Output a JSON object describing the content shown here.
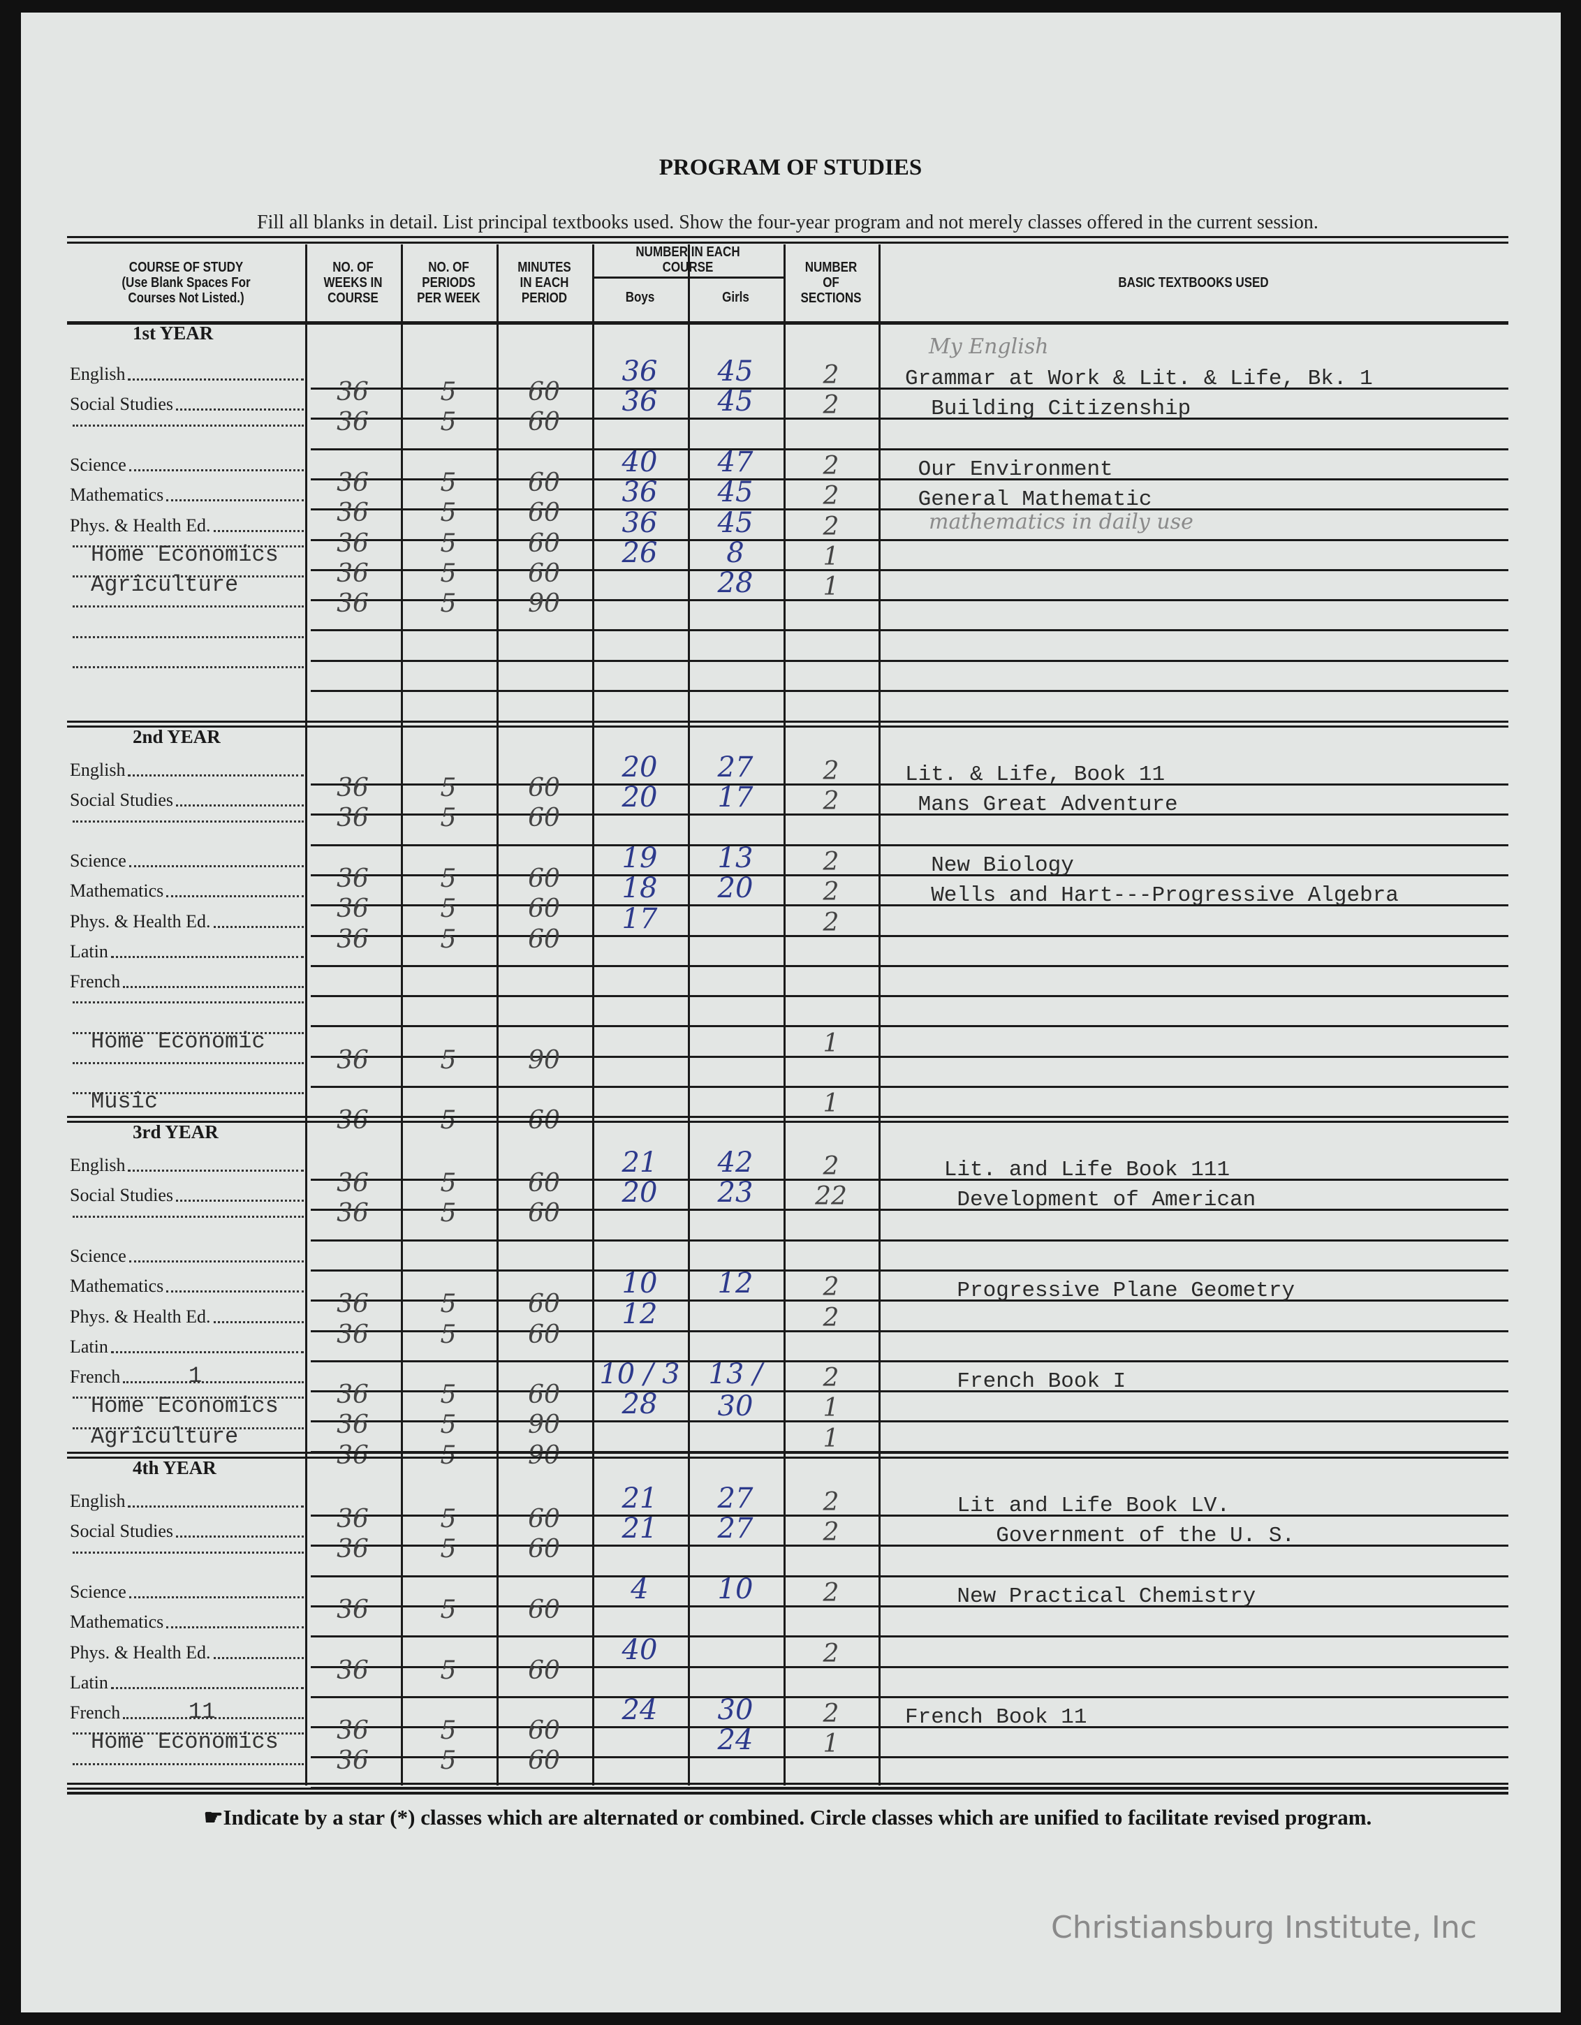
{
  "title": "PROGRAM OF STUDIES",
  "instructions": "Fill all blanks in detail.  List principal textbooks used.  Show the four-year program and not merely classes offered in the current session.",
  "columns": {
    "course": "COURSE OF STUDY\n(Use Blank Spaces For\nCourses Not Listed.)",
    "weeks": "NO. OF\nWEEKS IN\nCOURSE",
    "periods": "NO. OF\nPERIODS\nPER WEEK",
    "minutes": "MINUTES\nIN EACH\nPERIOD",
    "number_each": "NUMBER IN EACH\nCOURSE",
    "boys": "Boys",
    "girls": "Girls",
    "sections": "NUMBER\nOF\nSECTIONS",
    "textbooks": "BASIC TEXTBOOKS USED"
  },
  "sections": [
    {
      "heading": "1st YEAR",
      "rows": [
        {
          "label": "English",
          "weeks": "36",
          "periods": "5",
          "minutes": "60",
          "boys": "36",
          "girls": "45",
          "sections": "2",
          "textbook": "Grammar at Work & Lit. & Life, Bk. 1",
          "note": "My English"
        },
        {
          "label": "Social Studies",
          "weeks": "36",
          "periods": "5",
          "minutes": "60",
          "boys": "36",
          "girls": "45",
          "sections": "2",
          "textbook": "  Building Citizenship"
        },
        {
          "label": ""
        },
        {
          "label": "Science",
          "weeks": "36",
          "periods": "5",
          "minutes": "60",
          "boys": "40",
          "girls": "47",
          "sections": "2",
          "textbook": " Our Environment"
        },
        {
          "label": "Mathematics",
          "weeks": "36",
          "periods": "5",
          "minutes": "60",
          "boys": "36",
          "girls": "45",
          "sections": "2",
          "textbook": " General Mathematic",
          "note": "mathematics in daily use"
        },
        {
          "label": "Phys. & Health Ed.",
          "weeks": "36",
          "periods": "5",
          "minutes": "60",
          "boys": "36",
          "girls": "45",
          "sections": "2"
        },
        {
          "label": "",
          "typed_label": "Home Economics",
          "weeks": "36",
          "periods": "5",
          "minutes": "60",
          "boys": "26",
          "girls": "8",
          "sections": "1"
        },
        {
          "label": "",
          "typed_label": "Agriculture",
          "weeks": "36",
          "periods": "5",
          "minutes": "90",
          "girls": "28",
          "sections": "1"
        },
        {
          "label": ""
        },
        {
          "label": ""
        },
        {
          "label": ""
        }
      ]
    },
    {
      "heading": "2nd YEAR",
      "rows": [
        {
          "label": "English",
          "weeks": "36",
          "periods": "5",
          "minutes": "60",
          "boys": "20",
          "girls": "27",
          "sections": "2",
          "textbook": "Lit. & Life, Book 11"
        },
        {
          "label": "Social Studies",
          "weeks": "36",
          "periods": "5",
          "minutes": "60",
          "boys": "20",
          "girls": "17",
          "sections": "2",
          "textbook": " Mans Great Adventure"
        },
        {
          "label": ""
        },
        {
          "label": "Science",
          "weeks": "36",
          "periods": "5",
          "minutes": "60",
          "boys": "19",
          "girls": "13",
          "sections": "2",
          "textbook": "  New Biology"
        },
        {
          "label": "Mathematics",
          "weeks": "36",
          "periods": "5",
          "minutes": "60",
          "boys": "18",
          "girls": "20",
          "sections": "2",
          "textbook": "  Wells and Hart---Progressive Algebra"
        },
        {
          "label": "Phys. & Health Ed.",
          "weeks": "36",
          "periods": "5",
          "minutes": "60",
          "boys": "17",
          "sections": "2"
        },
        {
          "label": "Latin"
        },
        {
          "label": "French"
        },
        {
          "label": ""
        },
        {
          "label": "",
          "typed_label": "Home Economic",
          "weeks": "36",
          "periods": "5",
          "minutes": "90",
          "sections": "1"
        },
        {
          "label": ""
        },
        {
          "label": "",
          "typed_label": "Music",
          "weeks": "36",
          "periods": "5",
          "minutes": "60",
          "sections": "1"
        }
      ]
    },
    {
      "heading": "3rd YEAR",
      "rows": [
        {
          "label": "English",
          "weeks": "36",
          "periods": "5",
          "minutes": "60",
          "boys": "21",
          "girls": "42",
          "sections": "2",
          "textbook": "   Lit. and Life Book 111"
        },
        {
          "label": "Social Studies",
          "weeks": "36",
          "periods": "5",
          "minutes": "60",
          "boys": "20",
          "girls": "23",
          "sections": "22",
          "textbook": "    Development of American"
        },
        {
          "label": ""
        },
        {
          "label": "Science"
        },
        {
          "label": "Mathematics",
          "weeks": "36",
          "periods": "5",
          "minutes": "60",
          "boys": "10",
          "girls": "12",
          "sections": "2",
          "textbook": "    Progressive Plane Geometry"
        },
        {
          "label": "Phys. & Health Ed.",
          "weeks": "36",
          "periods": "5",
          "minutes": "60",
          "boys": "12",
          "sections": "2"
        },
        {
          "label": "Latin"
        },
        {
          "label": "French",
          "typed_label": "1",
          "weeks": "36",
          "periods": "5",
          "minutes": "60",
          "boys": "10 / 3",
          "girls": "13 / 30",
          "sections": "2",
          "textbook": "    French Book I"
        },
        {
          "label": "",
          "typed_label": "Home Economics",
          "weeks": "36",
          "periods": "5",
          "minutes": "90",
          "boys": "28",
          "sections": "1"
        },
        {
          "label": "",
          "typed_label": "Agriculture",
          "weeks": "36",
          "periods": "5",
          "minutes": "90",
          "sections": "1"
        }
      ]
    },
    {
      "heading": "4th YEAR",
      "rows": [
        {
          "label": "English",
          "weeks": "36",
          "periods": "5",
          "minutes": "60",
          "boys": "21",
          "girls": "27",
          "sections": "2",
          "textbook": "    Lit and Life Book LV."
        },
        {
          "label": "Social Studies",
          "weeks": "36",
          "periods": "5",
          "minutes": "60",
          "boys": "21",
          "girls": "27",
          "sections": "2",
          "textbook": "       Government of the U. S."
        },
        {
          "label": ""
        },
        {
          "label": "Science",
          "weeks": "36",
          "periods": "5",
          "minutes": "60",
          "boys": "4",
          "girls": "10",
          "sections": "2",
          "textbook": "    New Practical Chemistry"
        },
        {
          "label": "Mathematics"
        },
        {
          "label": "Phys. & Health Ed.",
          "weeks": "36",
          "periods": "5",
          "minutes": "60",
          "boys": "40",
          "sections": "2"
        },
        {
          "label": "Latin"
        },
        {
          "label": "French",
          "typed_label": "11",
          "weeks": "36",
          "periods": "5",
          "minutes": "60",
          "boys": "24",
          "girls": "30",
          "sections": "2",
          "textbook": "French Book 11"
        },
        {
          "label": "",
          "typed_label": "Home Economics",
          "weeks": "36",
          "periods": "5",
          "minutes": "60",
          "girls": "24",
          "sections": "1"
        },
        {
          "label": ""
        }
      ]
    }
  ],
  "footer_note": "Indicate by a star (*) classes which are alternated or combined.  Circle classes which are unified to facilitate revised program.",
  "footer_icon": "pointing-hand-icon",
  "watermark": "Christiansburg Institute, Inc"
}
